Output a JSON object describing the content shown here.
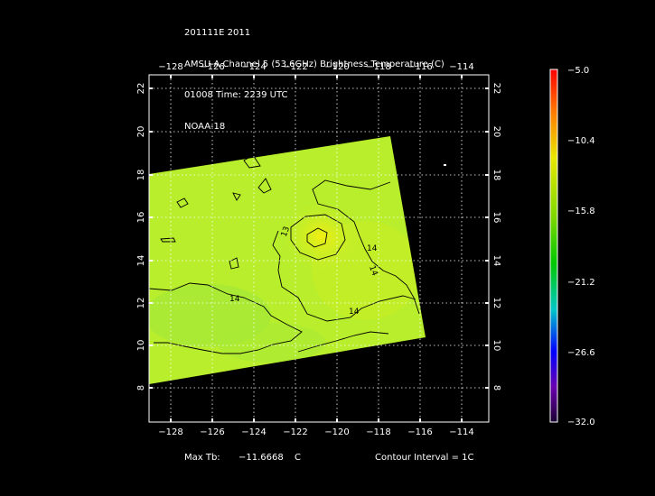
{
  "header": {
    "line1": "201111E 2011",
    "line2": "AMSU-A Channel 5 (53.6GHz) Brightness Temperature (C)",
    "line3": "01008 Time: 2239 UTC",
    "line4": "NOAA-18"
  },
  "map": {
    "lon_labels": [
      "−128",
      "−126",
      "−124",
      "−122",
      "−120",
      "−118",
      "−116",
      "−114"
    ],
    "lat_labels": [
      "8",
      "10",
      "12",
      "14",
      "16",
      "18",
      "20",
      "22"
    ],
    "contour_labels": [
      "13",
      "14",
      "14",
      "14",
      "14"
    ],
    "colors": {
      "background": "#000000",
      "field_main": "#b5ee2e",
      "field_warm": "#e6ec20",
      "field_cool": "#9fe83a",
      "contour": "#000000",
      "grid": "#ffffff"
    }
  },
  "colorbar": {
    "labels": [
      "−5.0",
      "−10.4",
      "−15.8",
      "−21.2",
      "−26.6",
      "−32.0"
    ],
    "min": -32.0,
    "max": -5.0
  },
  "footer": {
    "max_tb_label": "Max Tb:",
    "max_tb_value": "−11.6668",
    "max_tb_unit": "C",
    "contour_interval": "Contour Interval = 1C"
  }
}
